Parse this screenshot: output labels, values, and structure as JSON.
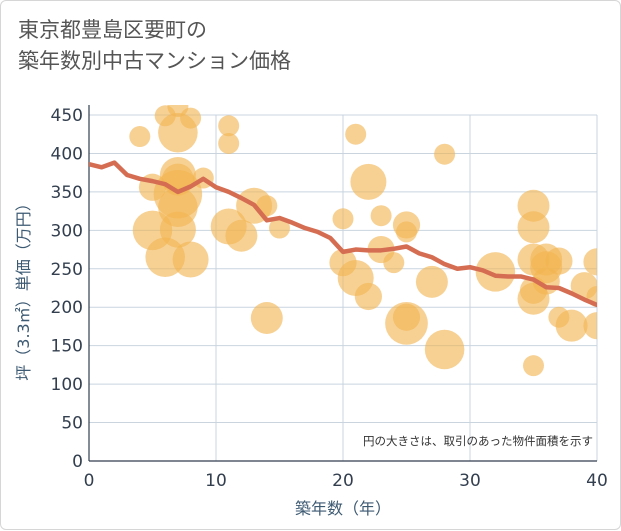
{
  "title": "東京都豊島区要町の\n築年数別中古マンション価格",
  "chart_data": {
    "type": "scatter",
    "title": "東京都豊島区要町の 築年数別中古マンション価格",
    "xlabel": "築年数（年）",
    "ylabel": "坪（3.3㎡）単価（万円）",
    "xlim": [
      0,
      40
    ],
    "ylim": [
      0,
      450
    ],
    "xticks": [
      "0",
      "10",
      "20",
      "30",
      "40"
    ],
    "yticks": [
      "0",
      "50",
      "100",
      "150",
      "200",
      "250",
      "300",
      "350",
      "400",
      "450"
    ],
    "grid": true,
    "note": "円の大きさは、取引のあった物件面積を示す",
    "colors": {
      "bubble": "#f2b452",
      "trend": "#d56d52",
      "grid": "#c9d4df",
      "text": "#3d5a73"
    },
    "bubbles": [
      {
        "x": 4,
        "y": 422,
        "s": 1
      },
      {
        "x": 6,
        "y": 449,
        "s": 1
      },
      {
        "x": 7,
        "y": 461,
        "s": 1
      },
      {
        "x": 8,
        "y": 446,
        "s": 1
      },
      {
        "x": 7,
        "y": 427,
        "s": 5
      },
      {
        "x": 7,
        "y": 372,
        "s": 4
      },
      {
        "x": 7,
        "y": 366,
        "s": 3
      },
      {
        "x": 9,
        "y": 368,
        "s": 1
      },
      {
        "x": 5,
        "y": 356,
        "s": 2
      },
      {
        "x": 7,
        "y": 347,
        "s": 8
      },
      {
        "x": 7,
        "y": 330,
        "s": 5
      },
      {
        "x": 5,
        "y": 300,
        "s": 5
      },
      {
        "x": 7,
        "y": 301,
        "s": 4
      },
      {
        "x": 6,
        "y": 265,
        "s": 5
      },
      {
        "x": 8,
        "y": 262,
        "s": 4
      },
      {
        "x": 11,
        "y": 436,
        "s": 1
      },
      {
        "x": 11,
        "y": 413,
        "s": 1
      },
      {
        "x": 13,
        "y": 332,
        "s": 4
      },
      {
        "x": 14,
        "y": 332,
        "s": 1
      },
      {
        "x": 11,
        "y": 305,
        "s": 4
      },
      {
        "x": 12,
        "y": 293,
        "s": 3
      },
      {
        "x": 15,
        "y": 303,
        "s": 1
      },
      {
        "x": 14,
        "y": 186,
        "s": 3
      },
      {
        "x": 21,
        "y": 425,
        "s": 1
      },
      {
        "x": 22,
        "y": 363,
        "s": 4
      },
      {
        "x": 20,
        "y": 315,
        "s": 1
      },
      {
        "x": 23,
        "y": 319,
        "s": 1
      },
      {
        "x": 25,
        "y": 307,
        "s": 2
      },
      {
        "x": 25,
        "y": 298,
        "s": 1
      },
      {
        "x": 23,
        "y": 275,
        "s": 2
      },
      {
        "x": 20,
        "y": 258,
        "s": 2
      },
      {
        "x": 24,
        "y": 258,
        "s": 1
      },
      {
        "x": 21,
        "y": 238,
        "s": 4
      },
      {
        "x": 22,
        "y": 214,
        "s": 2
      },
      {
        "x": 27,
        "y": 233,
        "s": 3
      },
      {
        "x": 25,
        "y": 187,
        "s": 2
      },
      {
        "x": 25,
        "y": 179,
        "s": 6
      },
      {
        "x": 28,
        "y": 399,
        "s": 1
      },
      {
        "x": 28,
        "y": 145,
        "s": 5
      },
      {
        "x": 32,
        "y": 246,
        "s": 5
      },
      {
        "x": 35,
        "y": 332,
        "s": 3
      },
      {
        "x": 35,
        "y": 304,
        "s": 3
      },
      {
        "x": 35,
        "y": 262,
        "s": 3
      },
      {
        "x": 36,
        "y": 262,
        "s": 3
      },
      {
        "x": 37,
        "y": 260,
        "s": 2
      },
      {
        "x": 36,
        "y": 252,
        "s": 3
      },
      {
        "x": 36,
        "y": 234,
        "s": 2
      },
      {
        "x": 35,
        "y": 222,
        "s": 2
      },
      {
        "x": 35,
        "y": 211,
        "s": 3
      },
      {
        "x": 37,
        "y": 187,
        "s": 1
      },
      {
        "x": 38,
        "y": 176,
        "s": 3
      },
      {
        "x": 39,
        "y": 228,
        "s": 2
      },
      {
        "x": 40,
        "y": 259,
        "s": 2
      },
      {
        "x": 40,
        "y": 214,
        "s": 1
      },
      {
        "x": 40,
        "y": 176,
        "s": 2
      },
      {
        "x": 35,
        "y": 124,
        "s": 1
      }
    ],
    "trend": {
      "x": [
        0,
        1,
        2,
        3,
        4,
        5,
        6,
        7,
        8,
        9,
        10,
        11,
        12,
        13,
        14,
        15,
        16,
        17,
        18,
        19,
        20,
        21,
        22,
        23,
        24,
        25,
        26,
        27,
        28,
        29,
        30,
        31,
        32,
        33,
        34,
        35,
        36,
        37,
        38,
        39,
        40
      ],
      "y": [
        386,
        382,
        388,
        372,
        367,
        364,
        360,
        350,
        357,
        367,
        356,
        350,
        342,
        333,
        313,
        316,
        310,
        303,
        298,
        290,
        272,
        275,
        274,
        274,
        276,
        279,
        270,
        265,
        256,
        250,
        252,
        248,
        241,
        240,
        240,
        236,
        226,
        225,
        218,
        210,
        203
      ]
    }
  }
}
